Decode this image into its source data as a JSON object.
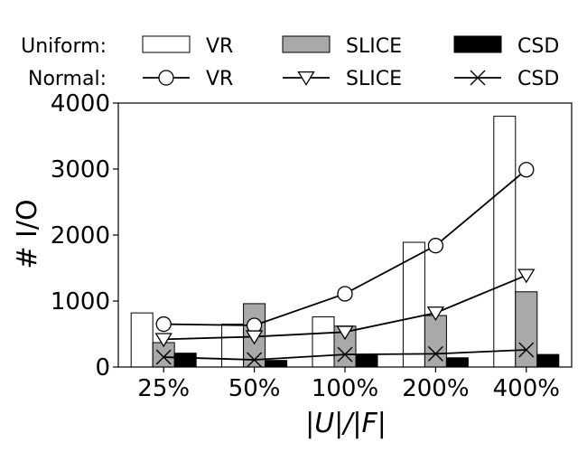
{
  "chart_data": {
    "type": "bar",
    "xlabel": "|U|/|F|",
    "ylabel": "# I/O",
    "ylim": [
      0,
      4000
    ],
    "yticks": [
      0,
      1000,
      2000,
      3000,
      4000
    ],
    "categories": [
      "25%",
      "50%",
      "100%",
      "200%",
      "400%"
    ],
    "bar_group_label": "Uniform:",
    "line_group_label": "Normal:",
    "series": [
      {
        "name": "VR",
        "group": "Uniform",
        "kind": "bar",
        "fill": "#ffffff",
        "values": [
          820,
          650,
          760,
          1890,
          3800
        ]
      },
      {
        "name": "SLICE",
        "group": "Uniform",
        "kind": "bar",
        "fill": "#a9a9a9",
        "values": [
          370,
          960,
          620,
          780,
          1140
        ]
      },
      {
        "name": "CSD",
        "group": "Uniform",
        "kind": "bar",
        "fill": "#000000",
        "values": [
          210,
          100,
          190,
          140,
          190
        ]
      },
      {
        "name": "VR",
        "group": "Normal",
        "kind": "line",
        "marker": "circle",
        "values": [
          650,
          630,
          1110,
          1840,
          2990
        ]
      },
      {
        "name": "SLICE",
        "group": "Normal",
        "kind": "line",
        "marker": "triangle-down",
        "values": [
          420,
          460,
          530,
          820,
          1390
        ]
      },
      {
        "name": "CSD",
        "group": "Normal",
        "kind": "line",
        "marker": "x",
        "values": [
          150,
          110,
          190,
          200,
          260
        ]
      }
    ]
  }
}
